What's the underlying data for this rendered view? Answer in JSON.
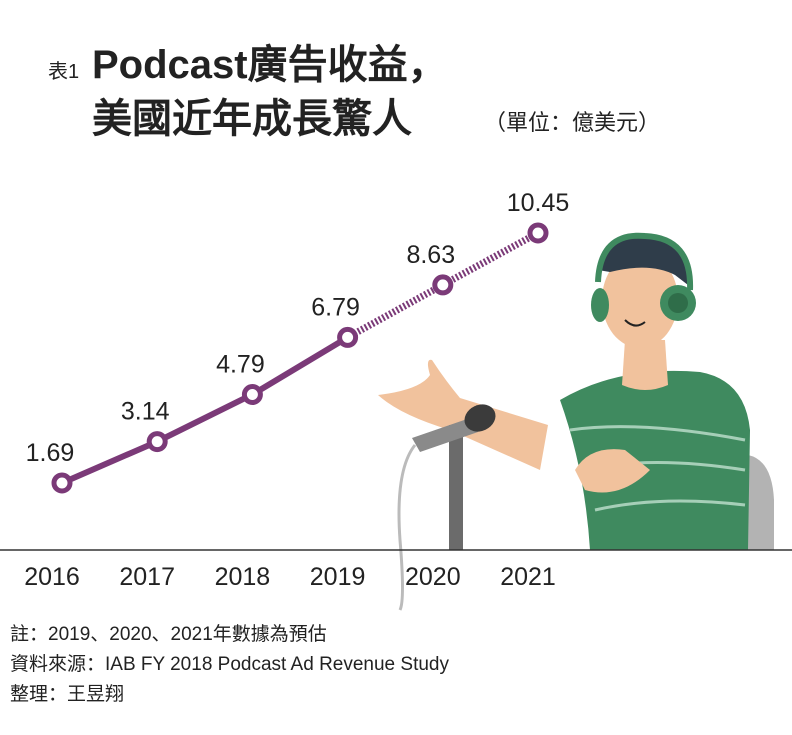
{
  "chart_data": {
    "type": "line",
    "label_prefix": "表1",
    "title": "Podcast廣告收益，",
    "subtitle": "美國近年成長驚人",
    "unit": "（單位：億美元）",
    "categories": [
      "2016",
      "2017",
      "2018",
      "2019",
      "2020",
      "2021"
    ],
    "values": [
      1.69,
      3.14,
      4.79,
      6.79,
      8.63,
      10.45
    ],
    "value_labels": [
      "1.69",
      "3.14",
      "4.79",
      "6.79",
      "8.63",
      "10.45"
    ],
    "color": "#7b3a78",
    "notes": [
      "註：2019、2020、2021年數據為預估",
      "資料來源：IAB FY 2018 Podcast Ad Revenue Study",
      "整理：王昱翔"
    ]
  }
}
